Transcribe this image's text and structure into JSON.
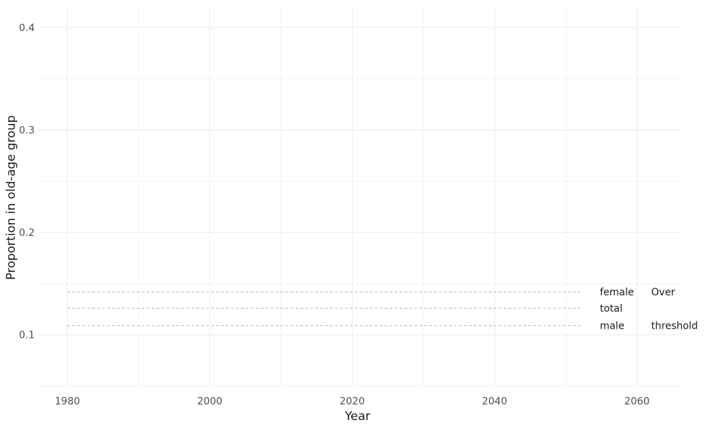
{
  "chart_data": {
    "type": "line",
    "title": "",
    "xlabel": "Year",
    "ylabel": "Proportion in old-age group",
    "xlim": [
      1976,
      2066
    ],
    "ylim": [
      0.05,
      0.42
    ],
    "x_major_ticks": [
      1980,
      2000,
      2020,
      2040,
      2060
    ],
    "x_minor_ticks": [
      1990,
      2010,
      2030,
      2050
    ],
    "y_major_ticks": [
      0.1,
      0.2,
      0.3,
      0.4
    ],
    "y_minor_ticks": [
      0.05,
      0.15,
      0.25,
      0.35
    ],
    "x_tick_labels": [
      "1980",
      "2000",
      "2020",
      "2040",
      "2060"
    ],
    "y_tick_labels": [
      "0.1",
      "0.2",
      "0.3",
      "0.4"
    ],
    "grid": true,
    "series": [],
    "reference_lines": [
      {
        "label": "female",
        "y": 0.142,
        "x_start": 1980,
        "x_end": 2052
      },
      {
        "label": "total",
        "y": 0.126,
        "x_start": 1980,
        "x_end": 2052
      },
      {
        "label": "male",
        "y": 0.109,
        "x_start": 1980,
        "x_end": 2052
      }
    ],
    "annotations": [
      {
        "text": "Over",
        "x": 2062,
        "y": 0.142
      },
      {
        "text": "threshold",
        "x": 2062,
        "y": 0.109
      }
    ],
    "colors": {
      "grid_major": "#ebebeb",
      "grid_minor": "#f2f2f2",
      "reference_line": "#b3b3b3",
      "text": "#1a1a1a",
      "tick_text": "#4d4d4d"
    }
  }
}
